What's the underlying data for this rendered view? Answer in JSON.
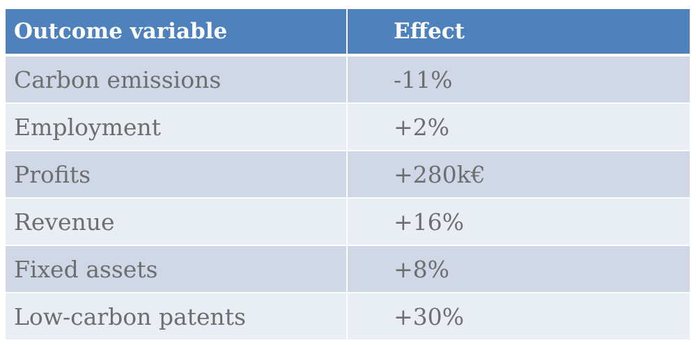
{
  "table": {
    "headers": [
      "Outcome variable",
      "Effect"
    ],
    "rows": [
      [
        "Carbon emissions",
        "-11%"
      ],
      [
        "Employment",
        "+2%"
      ],
      [
        "Profits",
        "+280k€"
      ],
      [
        "Revenue",
        "+16%"
      ],
      [
        "Fixed assets",
        "+8%"
      ],
      [
        "Low-carbon patents",
        "+30%"
      ]
    ]
  },
  "colors": {
    "header_bg": "#4f81bd",
    "row_odd_bg": "#d0d8e8",
    "row_even_bg": "#e9edf4",
    "body_text": "#6e6e6e"
  }
}
